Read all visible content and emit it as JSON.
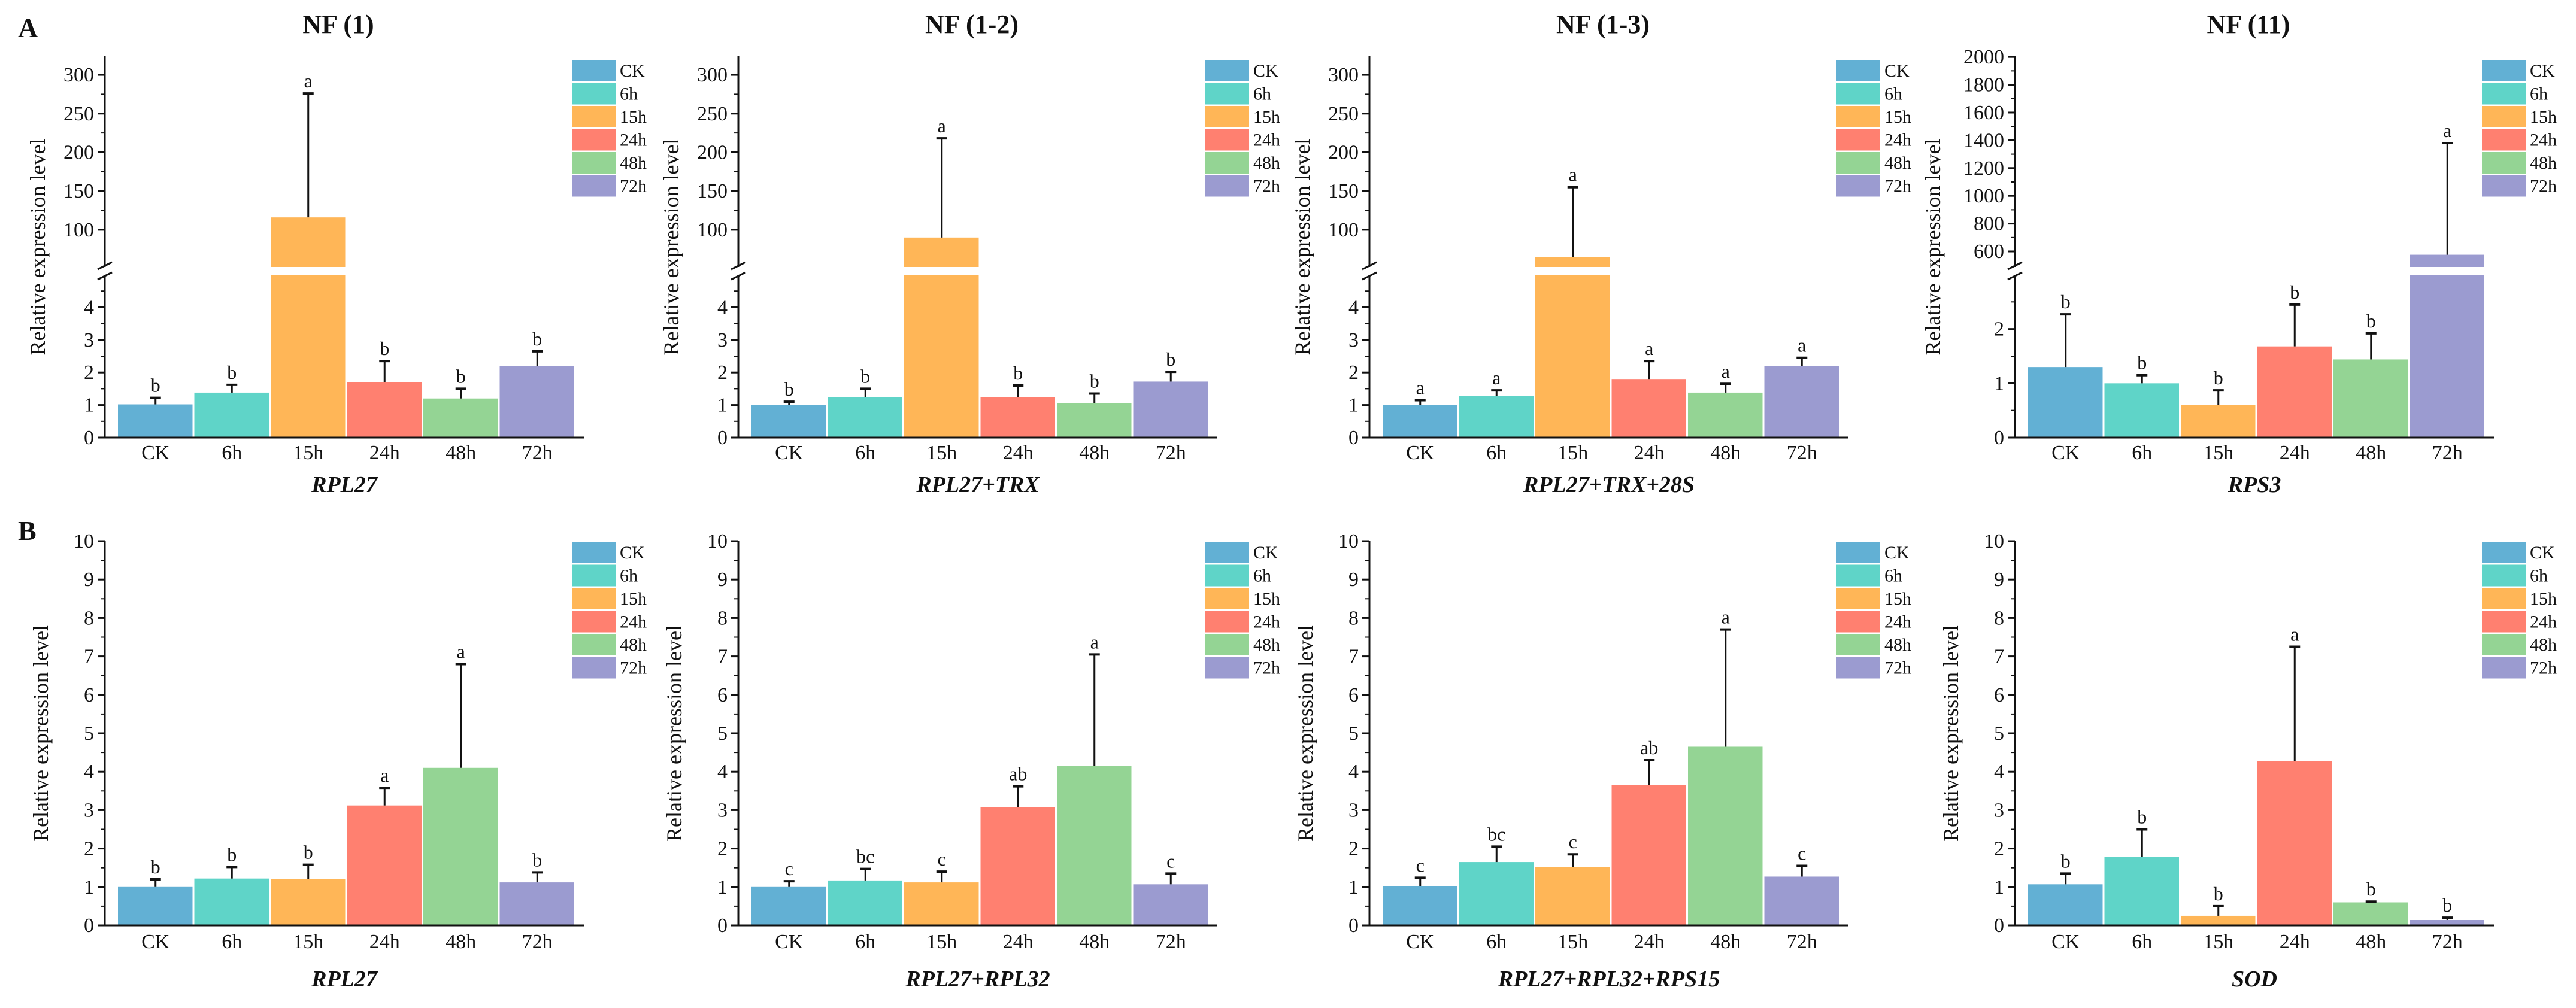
{
  "figure": {
    "section_labels": [
      "A",
      "B"
    ]
  },
  "legend": {
    "entries": [
      "CK",
      "6h",
      "15h",
      "24h",
      "48h",
      "72h"
    ],
    "colors": [
      "#62b0d4",
      "#5fd4c8",
      "#ffb657",
      "#ff8070",
      "#94d494",
      "#9b9bd0"
    ]
  },
  "chart_data": [
    {
      "type": "bar",
      "row": "A",
      "title": "NF (1)",
      "xlabel": "RPL27",
      "ylabel": "Relative expression level",
      "categories": [
        "CK",
        "6h",
        "15h",
        "24h",
        "48h",
        "72h"
      ],
      "values": [
        1.02,
        1.38,
        116,
        1.7,
        1.2,
        2.2
      ],
      "errors": [
        0.2,
        0.24,
        160,
        0.65,
        0.3,
        0.45
      ],
      "letters": [
        "b",
        "b",
        "a",
        "b",
        "b",
        "b"
      ],
      "axis_break": {
        "lower": [
          0,
          5
        ],
        "upper": [
          52,
          324
        ]
      },
      "lower_ticks": [
        0,
        1,
        2,
        3,
        4
      ],
      "upper_ticks": [
        100,
        150,
        200,
        250,
        300
      ]
    },
    {
      "type": "bar",
      "row": "A",
      "title": "NF (1-2)",
      "xlabel": "RPL27+TRX",
      "ylabel": "Relative expression level",
      "categories": [
        "CK",
        "6h",
        "15h",
        "24h",
        "48h",
        "72h"
      ],
      "values": [
        1.0,
        1.25,
        90,
        1.25,
        1.05,
        1.72
      ],
      "errors": [
        0.1,
        0.25,
        128,
        0.35,
        0.3,
        0.3
      ],
      "letters": [
        "b",
        "b",
        "a",
        "b",
        "b",
        "b"
      ],
      "axis_break": {
        "lower": [
          0,
          5
        ],
        "upper": [
          52,
          324
        ]
      },
      "lower_ticks": [
        0,
        1,
        2,
        3,
        4
      ],
      "upper_ticks": [
        100,
        150,
        200,
        250,
        300
      ]
    },
    {
      "type": "bar",
      "row": "A",
      "title": "NF (1-3)",
      "xlabel": "RPL27+TRX+28S",
      "ylabel": "Relative expression level",
      "categories": [
        "CK",
        "6h",
        "15h",
        "24h",
        "48h",
        "72h"
      ],
      "values": [
        1.0,
        1.28,
        65,
        1.78,
        1.38,
        2.2
      ],
      "errors": [
        0.15,
        0.17,
        90,
        0.57,
        0.27,
        0.25
      ],
      "letters": [
        "a",
        "a",
        "a",
        "a",
        "a",
        "a"
      ],
      "axis_break": {
        "lower": [
          0,
          5
        ],
        "upper": [
          52,
          324
        ]
      },
      "lower_ticks": [
        0,
        1,
        2,
        3,
        4
      ],
      "upper_ticks": [
        100,
        150,
        200,
        250,
        300
      ]
    },
    {
      "type": "bar",
      "row": "A",
      "title": "NF (11)",
      "xlabel": "RPS3",
      "ylabel": "Relative expression level",
      "categories": [
        "CK",
        "6h",
        "15h",
        "24h",
        "48h",
        "72h"
      ],
      "values": [
        1.3,
        1.0,
        0.6,
        1.68,
        1.44,
        576
      ],
      "errors": [
        0.97,
        0.15,
        0.27,
        0.77,
        0.48,
        804
      ],
      "letters": [
        "b",
        "b",
        "b",
        "b",
        "b",
        "a"
      ],
      "axis_break": {
        "lower": [
          0,
          3
        ],
        "upper": [
          488,
          2005
        ]
      },
      "lower_ticks": [
        0,
        1,
        2
      ],
      "upper_ticks": [
        600,
        800,
        1000,
        1200,
        1400,
        1600,
        1800,
        2000
      ]
    },
    {
      "type": "bar",
      "row": "B",
      "xlabel": "RPL27",
      "ylabel": "Relative expression level",
      "categories": [
        "CK",
        "6h",
        "15h",
        "24h",
        "48h",
        "72h"
      ],
      "values": [
        1.0,
        1.22,
        1.2,
        3.12,
        4.1,
        1.12
      ],
      "errors": [
        0.2,
        0.3,
        0.38,
        0.46,
        2.7,
        0.26
      ],
      "letters": [
        "b",
        "b",
        "b",
        "a",
        "a",
        "b"
      ],
      "ylim": [
        0,
        10
      ],
      "ticks": [
        0,
        1,
        2,
        3,
        4,
        5,
        6,
        7,
        8,
        9,
        10
      ]
    },
    {
      "type": "bar",
      "row": "B",
      "xlabel": "RPL27+RPL32",
      "ylabel": "Relative expression level",
      "categories": [
        "CK",
        "6h",
        "15h",
        "24h",
        "48h",
        "72h"
      ],
      "values": [
        1.0,
        1.17,
        1.12,
        3.07,
        4.15,
        1.07
      ],
      "errors": [
        0.15,
        0.3,
        0.28,
        0.55,
        2.9,
        0.28
      ],
      "letters": [
        "c",
        "bc",
        "c",
        "ab",
        "a",
        "c"
      ],
      "ylim": [
        0,
        10
      ],
      "ticks": [
        0,
        1,
        2,
        3,
        4,
        5,
        6,
        7,
        8,
        9,
        10
      ]
    },
    {
      "type": "bar",
      "row": "B",
      "xlabel": "RPL27+RPL32+RPS15",
      "ylabel": "Relative expression level",
      "categories": [
        "CK",
        "6h",
        "15h",
        "24h",
        "48h",
        "72h"
      ],
      "values": [
        1.02,
        1.65,
        1.52,
        3.65,
        4.65,
        1.27
      ],
      "errors": [
        0.22,
        0.4,
        0.33,
        0.65,
        3.05,
        0.28
      ],
      "letters": [
        "c",
        "bc",
        "c",
        "ab",
        "a",
        "c"
      ],
      "ylim": [
        0,
        10
      ],
      "ticks": [
        0,
        1,
        2,
        3,
        4,
        5,
        6,
        7,
        8,
        9,
        10
      ]
    },
    {
      "type": "bar",
      "row": "B",
      "xlabel": "SOD",
      "ylabel": "Relative expression level",
      "categories": [
        "CK",
        "6h",
        "15h",
        "24h",
        "48h",
        "72h"
      ],
      "values": [
        1.07,
        1.78,
        0.25,
        4.28,
        0.6,
        0.14
      ],
      "errors": [
        0.28,
        0.72,
        0.25,
        2.97,
        0.02,
        0.06
      ],
      "letters": [
        "b",
        "b",
        "b",
        "a",
        "b",
        "b"
      ],
      "ylim": [
        0,
        10
      ],
      "ticks": [
        0,
        1,
        2,
        3,
        4,
        5,
        6,
        7,
        8,
        9,
        10
      ]
    }
  ]
}
